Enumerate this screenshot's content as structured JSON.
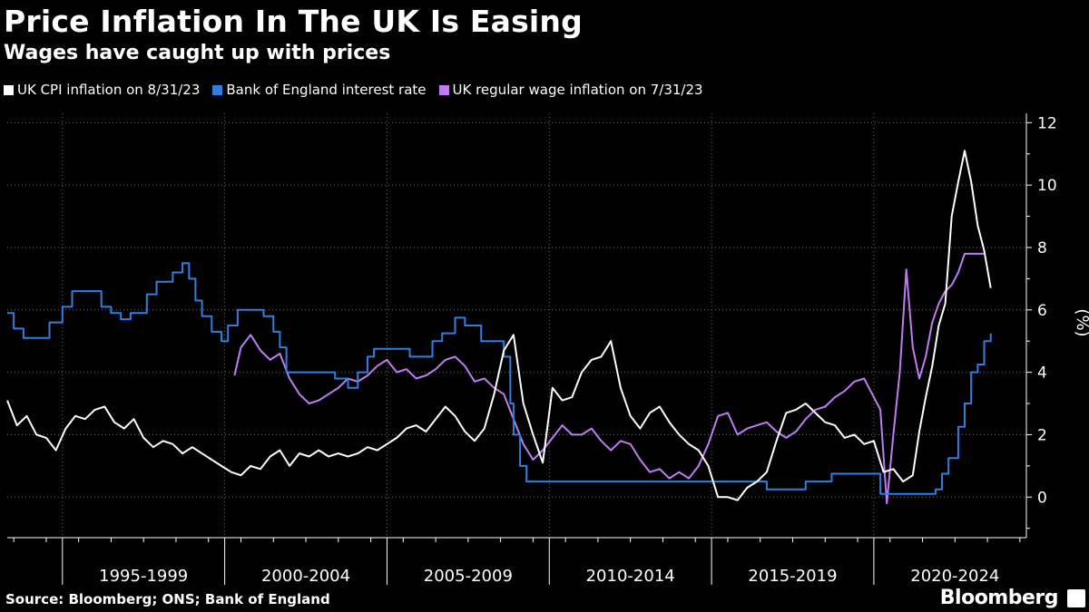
{
  "header": {
    "title": "Price Inflation In The UK Is Easing",
    "subtitle": "Wages have caught up with prices"
  },
  "footer": {
    "source": "Source: Bloomberg; ONS; Bank of England",
    "brand": "Bloomberg"
  },
  "colors": {
    "background": "#000000",
    "cpi": "#ffffff",
    "boe": "#2f7fe0",
    "wage": "#c07cf2",
    "grid": "#6a6a6a"
  },
  "chart_data": {
    "type": "line",
    "title": "Price Inflation In The UK Is Easing",
    "subtitle": "Wages have caught up with prices",
    "ylabel": "(%)",
    "xlabel": "",
    "ylim": [
      -1.3,
      12.3
    ],
    "xlim": [
      1993.3,
      2024.7
    ],
    "yticks": [
      0,
      2,
      4,
      6,
      8,
      10,
      12
    ],
    "x_period_labels": [
      {
        "label": "1995-1999",
        "center": 1997.5
      },
      {
        "label": "2000-2004",
        "center": 2002.5
      },
      {
        "label": "2005-2009",
        "center": 2007.5
      },
      {
        "label": "2010-2014",
        "center": 2012.5
      },
      {
        "label": "2015-2019",
        "center": 2017.5
      },
      {
        "label": "2020-2024",
        "center": 2022.5
      }
    ],
    "x_dividers": [
      1995,
      2000,
      2005,
      2010,
      2015,
      2020
    ],
    "legend_position": "top-left",
    "series": [
      {
        "name": "UK CPI inflation on 8/31/23",
        "key": "cpi",
        "x": [
          1993.3,
          1993.6,
          1993.9,
          1994.2,
          1994.5,
          1994.8,
          1995.1,
          1995.4,
          1995.7,
          1996.0,
          1996.3,
          1996.6,
          1996.9,
          1997.2,
          1997.5,
          1997.8,
          1998.1,
          1998.4,
          1998.7,
          1999.0,
          1999.3,
          1999.6,
          1999.9,
          2000.2,
          2000.5,
          2000.8,
          2001.1,
          2001.4,
          2001.7,
          2002.0,
          2002.3,
          2002.6,
          2002.9,
          2003.2,
          2003.5,
          2003.8,
          2004.1,
          2004.4,
          2004.7,
          2005.0,
          2005.3,
          2005.6,
          2005.9,
          2006.2,
          2006.5,
          2006.8,
          2007.1,
          2007.4,
          2007.7,
          2008.0,
          2008.3,
          2008.6,
          2008.9,
          2009.2,
          2009.5,
          2009.8,
          2010.1,
          2010.4,
          2010.7,
          2011.0,
          2011.3,
          2011.6,
          2011.9,
          2012.2,
          2012.5,
          2012.8,
          2013.1,
          2013.4,
          2013.7,
          2014.0,
          2014.3,
          2014.6,
          2014.9,
          2015.2,
          2015.5,
          2015.8,
          2016.1,
          2016.4,
          2016.7,
          2017.0,
          2017.3,
          2017.6,
          2017.9,
          2018.2,
          2018.5,
          2018.8,
          2019.1,
          2019.4,
          2019.7,
          2020.0,
          2020.3,
          2020.6,
          2020.9,
          2021.2,
          2021.4,
          2021.6,
          2021.8,
          2022.0,
          2022.2,
          2022.4,
          2022.6,
          2022.8,
          2023.0,
          2023.2,
          2023.4,
          2023.6
        ],
        "values": [
          3.1,
          2.3,
          2.6,
          2.0,
          1.9,
          1.5,
          2.2,
          2.6,
          2.5,
          2.8,
          2.9,
          2.4,
          2.2,
          2.5,
          1.9,
          1.6,
          1.8,
          1.7,
          1.4,
          1.6,
          1.4,
          1.2,
          1.0,
          0.8,
          0.7,
          1.0,
          0.9,
          1.3,
          1.5,
          1.0,
          1.4,
          1.3,
          1.5,
          1.3,
          1.4,
          1.3,
          1.4,
          1.6,
          1.5,
          1.7,
          1.9,
          2.2,
          2.3,
          2.1,
          2.5,
          2.9,
          2.6,
          2.1,
          1.8,
          2.2,
          3.3,
          4.7,
          5.2,
          3.0,
          2.0,
          1.1,
          3.5,
          3.1,
          3.2,
          4.0,
          4.4,
          4.5,
          5.0,
          3.5,
          2.6,
          2.2,
          2.7,
          2.9,
          2.4,
          2.0,
          1.7,
          1.5,
          1.0,
          0.0,
          0.0,
          -0.1,
          0.3,
          0.5,
          0.8,
          1.8,
          2.7,
          2.8,
          3.0,
          2.7,
          2.4,
          2.3,
          1.9,
          2.0,
          1.7,
          1.8,
          0.8,
          0.9,
          0.5,
          0.7,
          2.1,
          3.2,
          4.2,
          5.5,
          6.2,
          9.0,
          10.1,
          11.1,
          10.1,
          8.7,
          7.9,
          6.7
        ],
        "color": "#ffffff"
      },
      {
        "name": "Bank of England interest rate",
        "key": "boe",
        "x": [
          1993.3,
          1993.5,
          1993.8,
          1994.4,
          1994.6,
          1995.0,
          1995.3,
          1995.9,
          1996.2,
          1996.5,
          1996.8,
          1997.1,
          1997.4,
          1997.6,
          1997.9,
          1998.4,
          1998.7,
          1998.9,
          1999.1,
          1999.3,
          1999.6,
          1999.9,
          2000.1,
          2000.4,
          2001.0,
          2001.2,
          2001.5,
          2001.7,
          2001.9,
          2002.2,
          2003.1,
          2003.4,
          2003.8,
          2004.1,
          2004.4,
          2004.6,
          2005.7,
          2006.0,
          2006.4,
          2006.7,
          2007.1,
          2007.4,
          2007.7,
          2007.9,
          2008.2,
          2008.6,
          2008.8,
          2008.9,
          2009.1,
          2009.3,
          2016.7,
          2017.9,
          2018.7,
          2020.2,
          2020.3,
          2021.9,
          2022.1,
          2022.3,
          2022.6,
          2022.8,
          2023.0,
          2023.2,
          2023.4,
          2023.6
        ],
        "values": [
          5.9,
          5.4,
          5.1,
          5.1,
          5.6,
          6.1,
          6.6,
          6.6,
          6.1,
          5.9,
          5.7,
          5.9,
          5.9,
          6.5,
          6.9,
          7.2,
          7.5,
          7.0,
          6.3,
          5.8,
          5.3,
          5.0,
          5.5,
          6.0,
          6.0,
          5.8,
          5.3,
          4.8,
          4.0,
          4.0,
          4.0,
          3.8,
          3.5,
          4.0,
          4.5,
          4.75,
          4.5,
          4.5,
          5.0,
          5.25,
          5.75,
          5.5,
          5.5,
          5.0,
          5.0,
          4.5,
          3.0,
          2.0,
          1.0,
          0.5,
          0.25,
          0.5,
          0.75,
          0.1,
          0.1,
          0.25,
          0.75,
          1.25,
          2.25,
          3.0,
          4.0,
          4.25,
          5.0,
          5.25
        ],
        "color": "#2f7fe0"
      },
      {
        "name": "UK regular wage inflation on 7/31/23",
        "key": "wage",
        "x": [
          2000.3,
          2000.5,
          2000.8,
          2001.1,
          2001.4,
          2001.7,
          2002.0,
          2002.3,
          2002.6,
          2002.9,
          2003.2,
          2003.5,
          2003.8,
          2004.1,
          2004.4,
          2004.7,
          2005.0,
          2005.3,
          2005.6,
          2005.9,
          2006.2,
          2006.5,
          2006.8,
          2007.1,
          2007.4,
          2007.7,
          2008.0,
          2008.3,
          2008.6,
          2008.9,
          2009.2,
          2009.5,
          2009.8,
          2010.1,
          2010.4,
          2010.7,
          2011.0,
          2011.3,
          2011.6,
          2011.9,
          2012.2,
          2012.5,
          2012.8,
          2013.1,
          2013.4,
          2013.7,
          2014.0,
          2014.3,
          2014.6,
          2014.9,
          2015.2,
          2015.5,
          2015.8,
          2016.1,
          2016.4,
          2016.7,
          2017.0,
          2017.3,
          2017.6,
          2017.9,
          2018.2,
          2018.5,
          2018.8,
          2019.1,
          2019.4,
          2019.7,
          2020.0,
          2020.2,
          2020.4,
          2020.6,
          2020.8,
          2021.0,
          2021.2,
          2021.4,
          2021.6,
          2021.8,
          2022.0,
          2022.2,
          2022.4,
          2022.6,
          2022.8,
          2023.0,
          2023.2,
          2023.4
        ],
        "values": [
          3.9,
          4.8,
          5.2,
          4.7,
          4.4,
          4.6,
          3.8,
          3.3,
          3.0,
          3.1,
          3.3,
          3.5,
          3.8,
          3.7,
          3.9,
          4.2,
          4.4,
          4.0,
          4.1,
          3.8,
          3.9,
          4.1,
          4.4,
          4.5,
          4.2,
          3.7,
          3.8,
          3.5,
          3.3,
          2.5,
          1.7,
          1.2,
          1.5,
          1.9,
          2.3,
          2.0,
          2.0,
          2.2,
          1.8,
          1.5,
          1.8,
          1.7,
          1.2,
          0.8,
          0.9,
          0.6,
          0.8,
          0.6,
          1.0,
          1.7,
          2.6,
          2.7,
          2.0,
          2.2,
          2.3,
          2.4,
          2.1,
          1.9,
          2.1,
          2.5,
          2.8,
          2.9,
          3.2,
          3.4,
          3.7,
          3.8,
          3.2,
          2.8,
          -0.2,
          2.0,
          4.0,
          7.3,
          4.8,
          3.8,
          4.5,
          5.6,
          6.2,
          6.6,
          6.8,
          7.2,
          7.8,
          7.8,
          7.8,
          7.8
        ],
        "color": "#c07cf2"
      }
    ]
  }
}
